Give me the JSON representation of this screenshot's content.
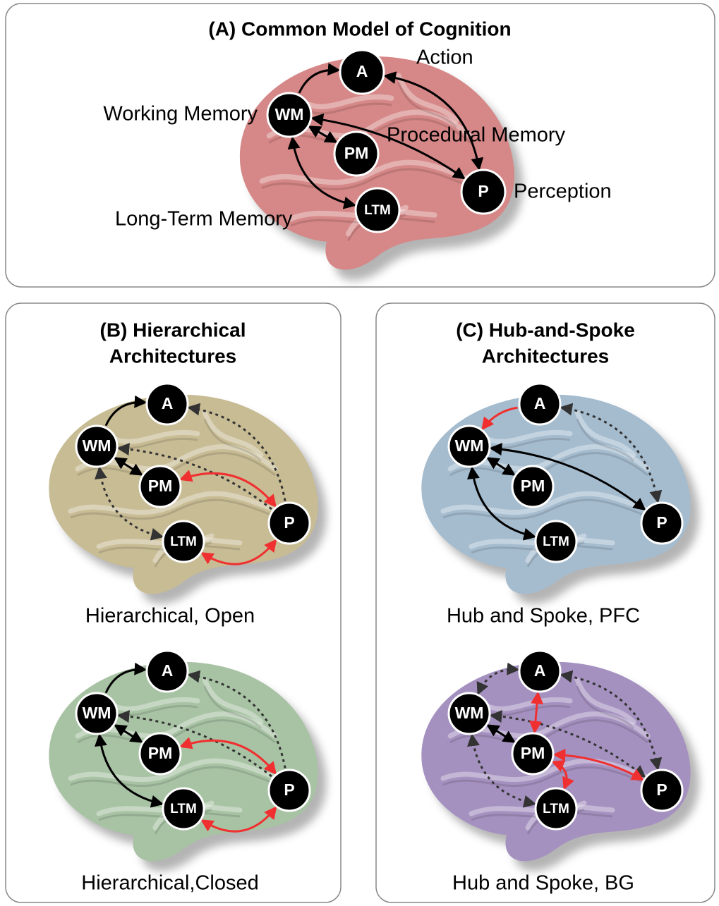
{
  "panels": [
    {
      "title_lines": [
        "(A) Common Model of Cognition"
      ],
      "diagrams": [
        {
          "nodes": [
            "A",
            "WM",
            "PM",
            "P",
            "LTM"
          ],
          "labels": [
            "Action",
            "Working Memory",
            "Procedural Memory",
            "Perception",
            "Long-Term Memory"
          ]
        }
      ]
    },
    {
      "title_lines": [
        "(B) Hierarchical",
        "Architectures"
      ],
      "diagrams": [
        {
          "nodes": [
            "A",
            "WM",
            "PM",
            "P",
            "LTM"
          ],
          "caption": "Hierarchical, Open"
        },
        {
          "nodes": [
            "A",
            "WM",
            "PM",
            "P",
            "LTM"
          ],
          "caption": "Hierarchical,Closed"
        }
      ]
    },
    {
      "title_lines": [
        "(C) Hub-and-Spoke",
        "Architectures"
      ],
      "diagrams": [
        {
          "nodes": [
            "A",
            "WM",
            "PM",
            "P",
            "LTM"
          ],
          "caption": "Hub and Spoke, PFC"
        },
        {
          "nodes": [
            "A",
            "WM",
            "PM",
            "P",
            "LTM"
          ],
          "caption": "Hub and Spoke, BG"
        }
      ]
    }
  ]
}
